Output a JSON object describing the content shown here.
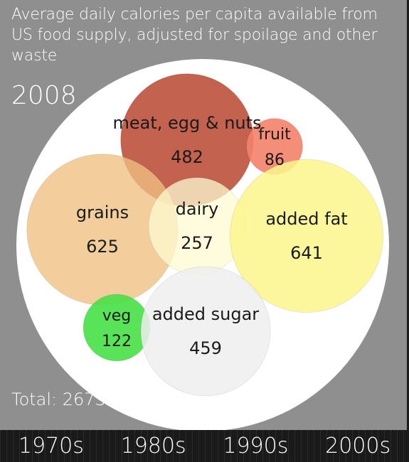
{
  "title": "Average daily calories per capita available from US food supply, adjusted for spoilage and other waste",
  "year": "2008",
  "total_label": "Total: 2673",
  "timeline": [
    "1970s",
    "1980s",
    "1990s",
    "2000s"
  ],
  "chart_data": {
    "type": "bubble",
    "categories": [
      "meat, egg & nuts",
      "fruit",
      "grains",
      "dairy",
      "added fat",
      "veg",
      "added sugar"
    ],
    "values": [
      482,
      86,
      625,
      257,
      641,
      122,
      459
    ],
    "colors": [
      "#c05a46",
      "#f4826a",
      "#f0c082",
      "#fdfbd2",
      "#fbf68c",
      "#47e047",
      "#eeeeee"
    ],
    "total": 2673
  }
}
